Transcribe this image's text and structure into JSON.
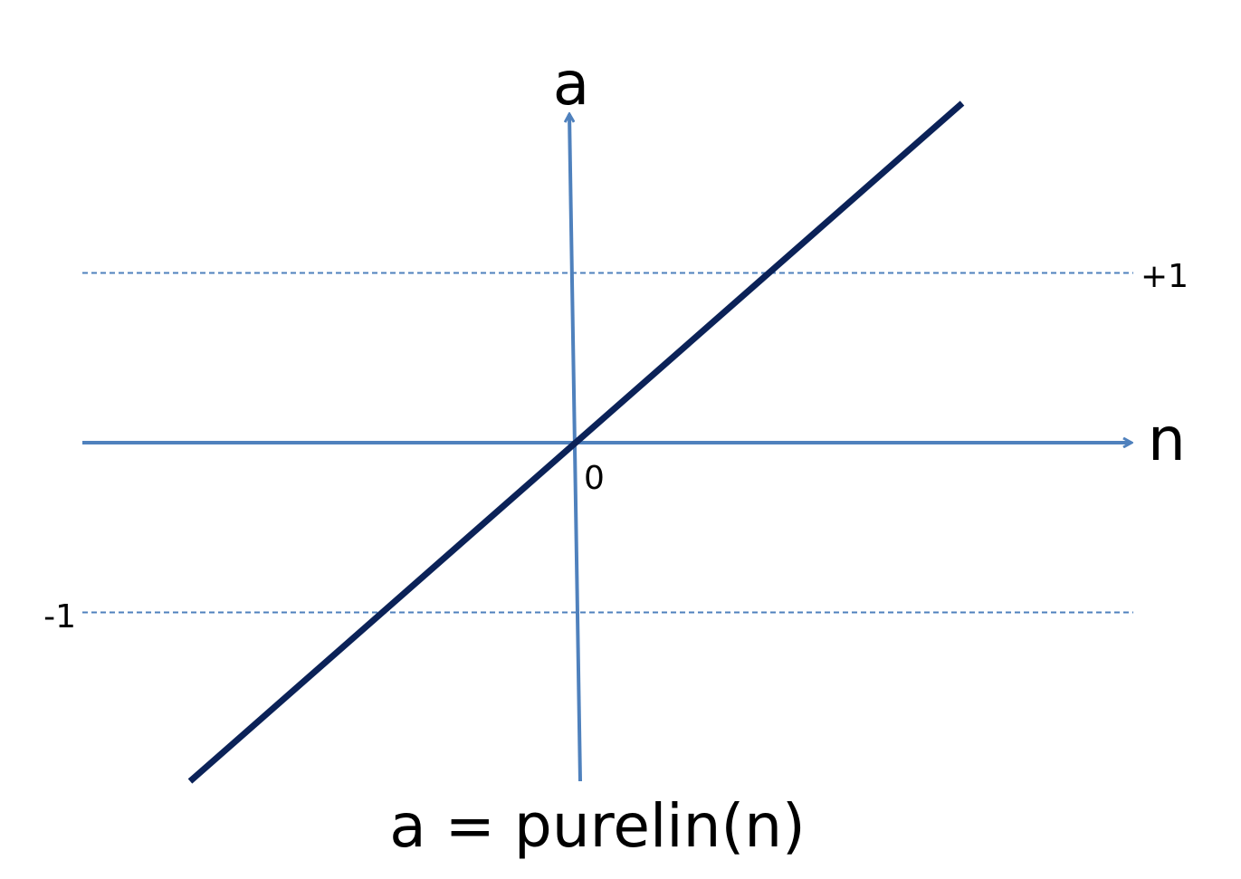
{
  "chart_data": {
    "type": "line",
    "title": "",
    "caption": "a = purelin(n)",
    "xlabel": "n",
    "ylabel": "a",
    "function": "purelin",
    "series": [
      {
        "name": "a = purelin(n)",
        "x": [
          -2.3,
          2.3
        ],
        "y": [
          -2.0,
          2.0
        ]
      }
    ],
    "reference_lines": [
      {
        "name": "upper",
        "y": 1,
        "label": "+1",
        "style": "dashed"
      },
      {
        "name": "lower",
        "y": -1,
        "label": "-1",
        "style": "dashed"
      }
    ],
    "origin_label": "0",
    "xlim": [
      -3.0,
      3.2
    ],
    "ylim": [
      -2.0,
      2.4
    ],
    "colors": {
      "axis": "#4f81bd",
      "line": "#0b2258",
      "dashed": "#4f81bd",
      "text": "#000000"
    }
  }
}
